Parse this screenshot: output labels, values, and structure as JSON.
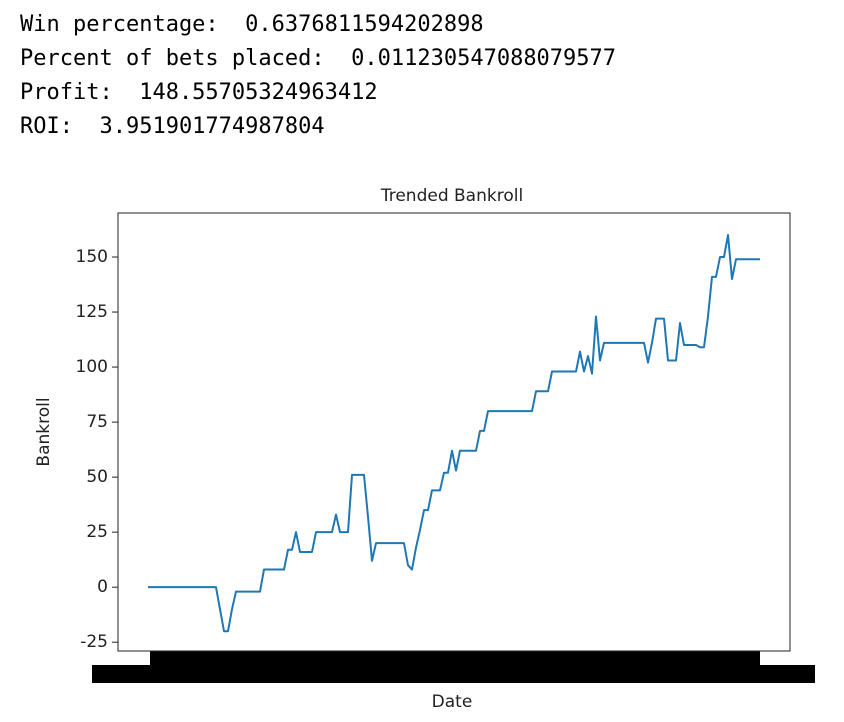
{
  "output_lines": [
    "Win percentage:  0.6376811594202898",
    "Percent of bets placed:  0.011230547088079577",
    "Profit:  148.55705324963412",
    "ROI:  3.951901774987804"
  ],
  "chart_data": {
    "type": "line",
    "title": "Trended Bankroll",
    "x_label": "Date",
    "y_label": "Bankroll",
    "ylim": [
      -29,
      170
    ],
    "yticks": [
      -25,
      0,
      25,
      50,
      75,
      100,
      125,
      150
    ],
    "series": [
      {
        "color": "#1f77b4",
        "values": [
          0,
          0,
          0,
          0,
          0,
          0,
          0,
          0,
          0,
          0,
          0,
          0,
          0,
          0,
          0,
          0,
          0,
          0,
          -10,
          -20,
          -20,
          -10,
          -2,
          -2,
          -2,
          -2,
          -2,
          -2,
          -2,
          8,
          8,
          8,
          8,
          8,
          8,
          17,
          17,
          25,
          16,
          16,
          16,
          16,
          25,
          25,
          25,
          25,
          25,
          33,
          25,
          25,
          25,
          51,
          51,
          51,
          51,
          32,
          12,
          20,
          20,
          20,
          20,
          20,
          20,
          20,
          20,
          10,
          8,
          18,
          26,
          35,
          35,
          44,
          44,
          44,
          52,
          52,
          62,
          53,
          62,
          62,
          62,
          62,
          62,
          71,
          71,
          80,
          80,
          80,
          80,
          80,
          80,
          80,
          80,
          80,
          80,
          80,
          80,
          89,
          89,
          89,
          89,
          98,
          98,
          98,
          98,
          98,
          98,
          98,
          107,
          98,
          105,
          97,
          123,
          103,
          111,
          111,
          111,
          111,
          111,
          111,
          111,
          111,
          111,
          111,
          111,
          102,
          111,
          122,
          122,
          122,
          103,
          103,
          103,
          120,
          110,
          110,
          110,
          110,
          109,
          109,
          123,
          141,
          141,
          150,
          150,
          160,
          140,
          149,
          149,
          149,
          149,
          149,
          149,
          149
        ]
      }
    ]
  }
}
